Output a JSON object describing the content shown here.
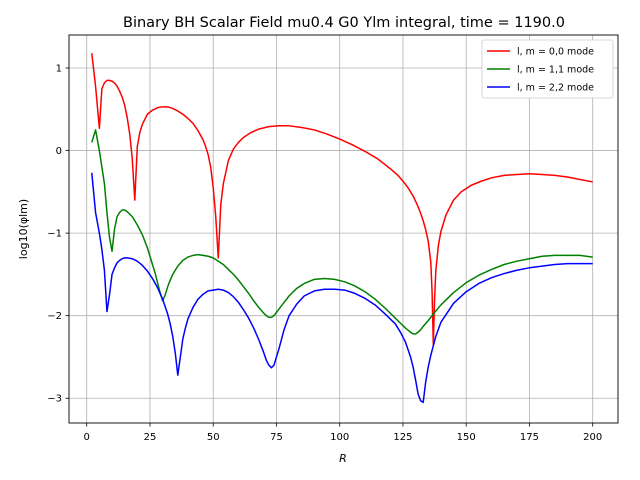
{
  "chart_data": {
    "type": "line",
    "title": "Binary BH Scalar Field mu0.4 G0 Ylm integral, time = 1190.0",
    "xlabel": "R",
    "ylabel": "log10(φlm)",
    "xlim": [
      -7,
      210
    ],
    "ylim": [
      -3.3,
      1.4
    ],
    "xticks": [
      "0",
      "25",
      "50",
      "75",
      "100",
      "125",
      "150",
      "175",
      "200"
    ],
    "yticks": [
      "1",
      "0",
      "−1",
      "−2",
      "−3"
    ],
    "grid": true,
    "legend_position": "top-right",
    "series": [
      {
        "name": "l, m = 0,0 mode",
        "color": "#ff0000",
        "x": [
          2,
          3.5,
          5,
          6,
          7,
          8,
          9,
          10,
          11,
          12,
          13,
          14,
          15,
          16,
          17,
          18,
          19,
          20,
          21,
          22,
          24,
          26,
          28,
          30,
          32,
          34,
          36,
          38,
          40,
          42,
          44,
          46,
          47,
          48,
          49,
          50,
          51,
          52,
          53,
          54,
          56,
          58,
          60,
          62,
          65,
          68,
          72,
          76,
          80,
          85,
          90,
          95,
          100,
          105,
          110,
          115,
          120,
          123,
          125,
          127,
          129,
          131,
          132,
          133,
          134,
          135,
          136,
          136.5,
          137,
          137.5,
          138,
          139,
          140,
          142,
          145,
          148,
          152,
          156,
          160,
          165,
          170,
          175,
          180,
          185,
          190,
          195,
          200
        ],
        "y": [
          1.18,
          0.78,
          0.27,
          0.75,
          0.82,
          0.85,
          0.85,
          0.84,
          0.82,
          0.78,
          0.72,
          0.65,
          0.55,
          0.4,
          0.2,
          -0.1,
          -0.6,
          0.05,
          0.22,
          0.32,
          0.44,
          0.49,
          0.52,
          0.53,
          0.53,
          0.51,
          0.48,
          0.44,
          0.39,
          0.33,
          0.24,
          0.13,
          0.05,
          -0.05,
          -0.2,
          -0.45,
          -0.8,
          -1.3,
          -0.65,
          -0.4,
          -0.12,
          0.02,
          0.1,
          0.16,
          0.22,
          0.26,
          0.29,
          0.3,
          0.3,
          0.28,
          0.25,
          0.2,
          0.14,
          0.07,
          -0.01,
          -0.1,
          -0.22,
          -0.3,
          -0.37,
          -0.45,
          -0.55,
          -0.68,
          -0.76,
          -0.85,
          -0.96,
          -1.1,
          -1.35,
          -1.7,
          -2.35,
          -1.8,
          -1.45,
          -1.15,
          -0.98,
          -0.78,
          -0.6,
          -0.5,
          -0.42,
          -0.37,
          -0.33,
          -0.3,
          -0.29,
          -0.28,
          -0.29,
          -0.3,
          -0.32,
          -0.35,
          -0.38
        ]
      },
      {
        "name": "l, m = 1,1 mode",
        "color": "#008000",
        "x": [
          2,
          3.5,
          5,
          6,
          7,
          8,
          9,
          10,
          11,
          12,
          13,
          14,
          15,
          16,
          18,
          20,
          22,
          24,
          26,
          27,
          28,
          29,
          30,
          31,
          32,
          33,
          34,
          36,
          38,
          40,
          42,
          44,
          46,
          48,
          50,
          52,
          54,
          56,
          58,
          60,
          62,
          64,
          66,
          68,
          70,
          71,
          72,
          73,
          74,
          75,
          76,
          78,
          80,
          83,
          86,
          90,
          94,
          98,
          102,
          106,
          110,
          114,
          118,
          122,
          124,
          126,
          128,
          129,
          130,
          131,
          132,
          133,
          135,
          137,
          140,
          145,
          150,
          155,
          160,
          165,
          170,
          175,
          180,
          185,
          190,
          195,
          200
        ],
        "y": [
          0.1,
          0.25,
          0.0,
          -0.2,
          -0.4,
          -0.75,
          -1.05,
          -1.22,
          -0.95,
          -0.8,
          -0.75,
          -0.72,
          -0.72,
          -0.74,
          -0.8,
          -0.9,
          -1.02,
          -1.18,
          -1.38,
          -1.48,
          -1.6,
          -1.72,
          -1.82,
          -1.75,
          -1.65,
          -1.57,
          -1.5,
          -1.4,
          -1.33,
          -1.29,
          -1.27,
          -1.26,
          -1.27,
          -1.28,
          -1.3,
          -1.34,
          -1.38,
          -1.44,
          -1.5,
          -1.57,
          -1.65,
          -1.73,
          -1.82,
          -1.9,
          -1.97,
          -2.0,
          -2.02,
          -2.02,
          -2.0,
          -1.96,
          -1.92,
          -1.84,
          -1.76,
          -1.67,
          -1.61,
          -1.56,
          -1.55,
          -1.56,
          -1.59,
          -1.64,
          -1.71,
          -1.8,
          -1.91,
          -2.03,
          -2.09,
          -2.15,
          -2.2,
          -2.22,
          -2.22,
          -2.2,
          -2.17,
          -2.13,
          -2.06,
          -1.98,
          -1.87,
          -1.72,
          -1.6,
          -1.51,
          -1.44,
          -1.38,
          -1.34,
          -1.31,
          -1.28,
          -1.27,
          -1.27,
          -1.27,
          -1.29
        ]
      },
      {
        "name": "l, m = 2,2 mode",
        "color": "#0000ff",
        "x": [
          2,
          3.5,
          5,
          6,
          7,
          8,
          9,
          10,
          11,
          12,
          13,
          14,
          15,
          16,
          18,
          20,
          22,
          24,
          26,
          28,
          30,
          32,
          33,
          34,
          35,
          36,
          37,
          38,
          39,
          40,
          42,
          44,
          46,
          48,
          50,
          52,
          54,
          56,
          58,
          60,
          62,
          64,
          66,
          68,
          70,
          71,
          72,
          73,
          74,
          75,
          76,
          78,
          80,
          83,
          86,
          90,
          94,
          98,
          102,
          106,
          110,
          114,
          118,
          122,
          124,
          126,
          128,
          129,
          130,
          131,
          132,
          133,
          134,
          135,
          136,
          138,
          140,
          145,
          150,
          155,
          160,
          165,
          170,
          175,
          180,
          185,
          190,
          195,
          200
        ],
        "y": [
          -0.27,
          -0.75,
          -1.0,
          -1.2,
          -1.45,
          -1.95,
          -1.75,
          -1.5,
          -1.42,
          -1.36,
          -1.33,
          -1.31,
          -1.3,
          -1.3,
          -1.31,
          -1.34,
          -1.39,
          -1.46,
          -1.55,
          -1.66,
          -1.8,
          -1.98,
          -2.1,
          -2.25,
          -2.45,
          -2.72,
          -2.5,
          -2.28,
          -2.15,
          -2.04,
          -1.9,
          -1.8,
          -1.74,
          -1.7,
          -1.69,
          -1.68,
          -1.69,
          -1.72,
          -1.77,
          -1.84,
          -1.93,
          -2.03,
          -2.15,
          -2.29,
          -2.45,
          -2.54,
          -2.6,
          -2.63,
          -2.6,
          -2.5,
          -2.4,
          -2.17,
          -2.0,
          -1.86,
          -1.76,
          -1.7,
          -1.68,
          -1.68,
          -1.69,
          -1.73,
          -1.79,
          -1.87,
          -1.98,
          -2.1,
          -2.2,
          -2.32,
          -2.5,
          -2.62,
          -2.78,
          -2.95,
          -3.03,
          -3.05,
          -2.8,
          -2.62,
          -2.48,
          -2.25,
          -2.08,
          -1.85,
          -1.71,
          -1.61,
          -1.54,
          -1.49,
          -1.45,
          -1.42,
          -1.4,
          -1.38,
          -1.37,
          -1.37,
          -1.37
        ]
      }
    ]
  }
}
